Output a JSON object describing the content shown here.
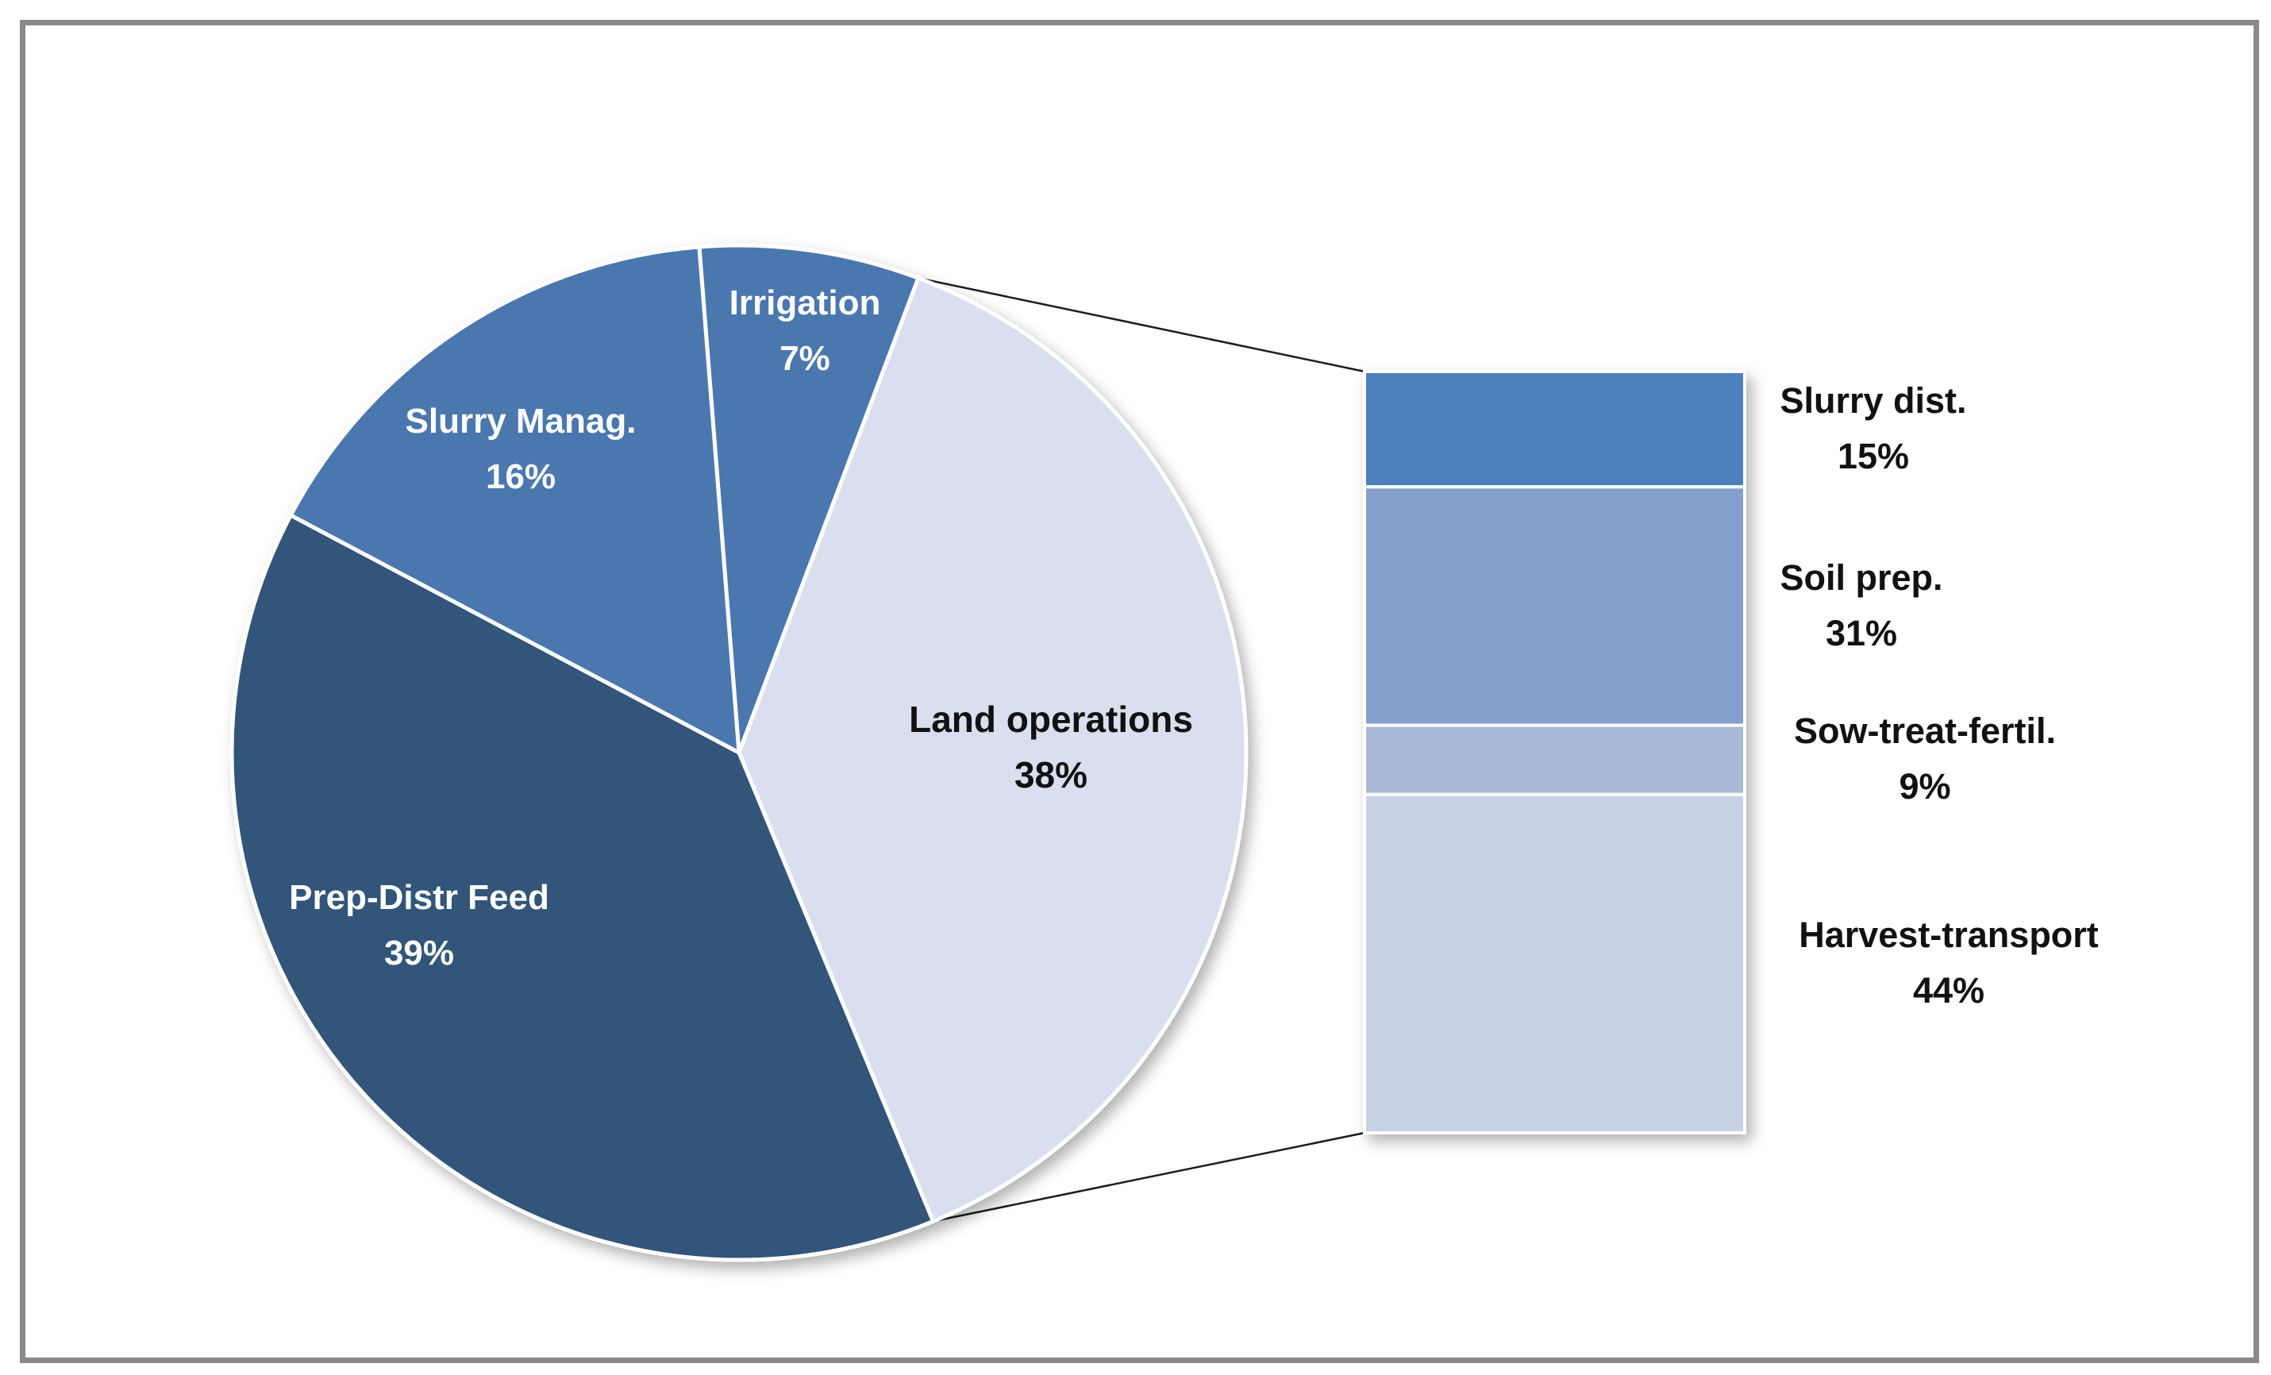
{
  "chart_data": {
    "type": "bar-of-pie",
    "title": "",
    "legend": "none",
    "pie": {
      "start_angle_deg": -4.5,
      "clockwise": true,
      "other_slice_index": 1,
      "series": [
        {
          "label": "Irrigation",
          "pct_label": "7%",
          "value": 7,
          "color": "#4b77af",
          "text_color": "#ffffff"
        },
        {
          "label": "Land operations",
          "pct_label": "38%",
          "value": 38,
          "color": "#d9dfee",
          "text_color": "#111111"
        },
        {
          "label": "Prep-Distr Feed",
          "pct_label": "39%",
          "value": 39,
          "color": "#315579",
          "text_color": "#ffffff"
        },
        {
          "label": "Slurry Manag.",
          "pct_label": "16%",
          "value": 16,
          "color": "#4b77af",
          "text_color": "#ffffff"
        }
      ]
    },
    "bar": {
      "expands_slice": "Land operations",
      "segments": [
        {
          "label": "Slurry dist.",
          "pct_label": "15%",
          "value": 15,
          "color": "#4e81bd"
        },
        {
          "label": "Soil prep.",
          "pct_label": "31%",
          "value": 31,
          "color": "#85a0cd"
        },
        {
          "label": "Sow-treat-fertil.",
          "pct_label": "9%",
          "value": 9,
          "color": "#a9bad7"
        },
        {
          "label": "Harvest-transport",
          "pct_label": "44%",
          "value": 44,
          "color": "#c6d1e5"
        }
      ]
    },
    "colors": {
      "connector_line": "#1c1c1c",
      "slice_separator": "#ffffff",
      "frame_border": "#898989"
    }
  }
}
